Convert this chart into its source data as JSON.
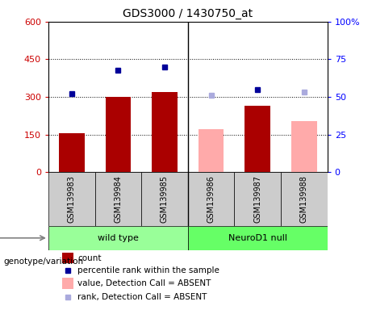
{
  "title": "GDS3000 / 1430750_at",
  "samples": [
    "GSM139983",
    "GSM139984",
    "GSM139985",
    "GSM139986",
    "GSM139987",
    "GSM139988"
  ],
  "bar_values": [
    155,
    300,
    320,
    null,
    265,
    null
  ],
  "bar_values_absent": [
    null,
    null,
    null,
    170,
    null,
    205
  ],
  "percentile_present": [
    52,
    68,
    70,
    null,
    55,
    null
  ],
  "percentile_absent": [
    null,
    null,
    null,
    51,
    null,
    53
  ],
  "bar_color_present": "#AA0000",
  "bar_color_absent": "#FFAAAA",
  "dot_color_present": "#000099",
  "dot_color_absent": "#AAAADD",
  "ylim_left": [
    0,
    600
  ],
  "ylim_right": [
    0,
    100
  ],
  "yticks_left": [
    0,
    150,
    300,
    450,
    600
  ],
  "yticks_right": [
    0,
    25,
    50,
    75,
    100
  ],
  "ytick_labels_left": [
    "0",
    "150",
    "300",
    "450",
    "600"
  ],
  "ytick_labels_right": [
    "0",
    "25",
    "50",
    "75",
    "100%"
  ],
  "groups": [
    {
      "label": "wild type",
      "indices": [
        0,
        1,
        2
      ],
      "color": "#99FF99"
    },
    {
      "label": "NeuroD1 null",
      "indices": [
        3,
        4,
        5
      ],
      "color": "#66FF66"
    }
  ],
  "group_label": "genotype/variation",
  "bar_width": 0.55,
  "legend_items": [
    {
      "label": "count",
      "color": "#AA0000",
      "type": "bar"
    },
    {
      "label": "percentile rank within the sample",
      "color": "#000099",
      "type": "dot"
    },
    {
      "label": "value, Detection Call = ABSENT",
      "color": "#FFAAAA",
      "type": "bar"
    },
    {
      "label": "rank, Detection Call = ABSENT",
      "color": "#AAAADD",
      "type": "dot"
    }
  ]
}
